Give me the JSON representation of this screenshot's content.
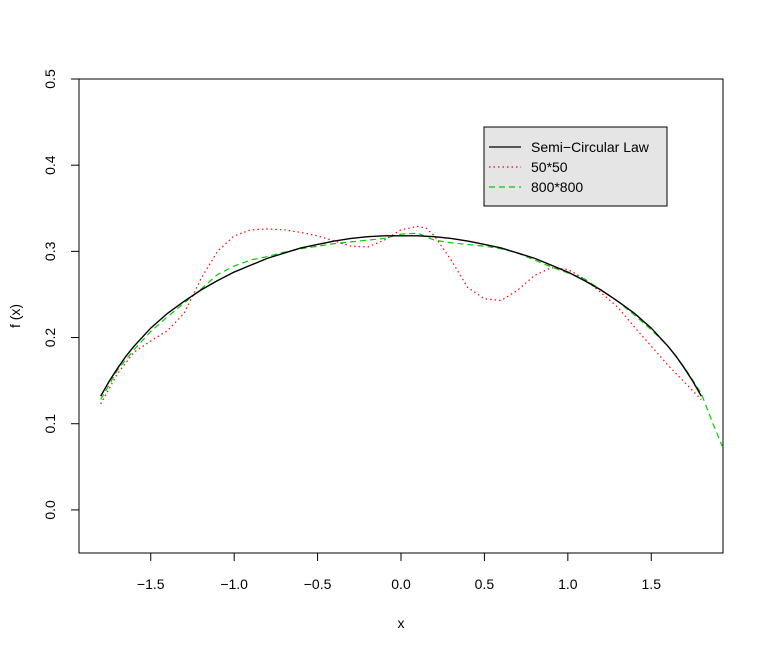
{
  "chart_data": {
    "type": "line",
    "title": "",
    "xlabel": "x",
    "ylabel": "f (x)",
    "xlim": [
      -1.93,
      1.93
    ],
    "ylim": [
      -0.05,
      0.5
    ],
    "x_ticks": [
      -1.5,
      -1.0,
      -0.5,
      0.0,
      0.5,
      1.0,
      1.5
    ],
    "x_tick_labels": [
      "−1.5",
      "−1.0",
      "−0.5",
      "0.0",
      "0.5",
      "1.0",
      "1.5"
    ],
    "y_ticks": [
      0.0,
      0.1,
      0.2,
      0.3,
      0.4,
      0.5
    ],
    "y_tick_labels": [
      "0.0",
      "0.1",
      "0.2",
      "0.3",
      "0.4",
      "0.5"
    ],
    "grid": false,
    "legend_position": "top-right",
    "series": [
      {
        "name": "Semi−Circular Law",
        "color": "#000000",
        "line_style": "solid",
        "x": [
          -1.8,
          -1.75,
          -1.7,
          -1.65,
          -1.6,
          -1.5,
          -1.4,
          -1.3,
          -1.2,
          -1.1,
          -1.0,
          -0.9,
          -0.8,
          -0.7,
          -0.6,
          -0.5,
          -0.4,
          -0.3,
          -0.2,
          -0.1,
          0.0,
          0.1,
          0.2,
          0.3,
          0.4,
          0.5,
          0.6,
          0.7,
          0.8,
          0.9,
          1.0,
          1.1,
          1.2,
          1.3,
          1.4,
          1.5,
          1.6,
          1.65,
          1.7,
          1.75,
          1.8
        ],
        "y": [
          0.132,
          0.149,
          0.164,
          0.178,
          0.19,
          0.211,
          0.228,
          0.242,
          0.255,
          0.266,
          0.276,
          0.284,
          0.292,
          0.298,
          0.304,
          0.308,
          0.312,
          0.315,
          0.317,
          0.318,
          0.318,
          0.318,
          0.317,
          0.315,
          0.312,
          0.308,
          0.304,
          0.298,
          0.292,
          0.284,
          0.276,
          0.266,
          0.255,
          0.242,
          0.228,
          0.211,
          0.19,
          0.178,
          0.164,
          0.149,
          0.132
        ]
      },
      {
        "name": "50*50",
        "color": "#ff0000",
        "line_style": "dotted",
        "x": [
          -1.8,
          -1.7,
          -1.6,
          -1.5,
          -1.4,
          -1.3,
          -1.2,
          -1.1,
          -1.0,
          -0.9,
          -0.8,
          -0.7,
          -0.6,
          -0.5,
          -0.4,
          -0.3,
          -0.2,
          -0.1,
          0.0,
          0.1,
          0.15,
          0.2,
          0.3,
          0.4,
          0.5,
          0.6,
          0.7,
          0.8,
          0.9,
          1.0,
          1.1,
          1.2,
          1.3,
          1.4,
          1.5,
          1.6,
          1.7,
          1.8
        ],
        "y": [
          0.123,
          0.158,
          0.183,
          0.196,
          0.208,
          0.228,
          0.268,
          0.3,
          0.318,
          0.325,
          0.326,
          0.325,
          0.322,
          0.318,
          0.312,
          0.306,
          0.305,
          0.313,
          0.325,
          0.329,
          0.327,
          0.318,
          0.29,
          0.258,
          0.245,
          0.243,
          0.255,
          0.272,
          0.281,
          0.279,
          0.268,
          0.252,
          0.235,
          0.212,
          0.19,
          0.168,
          0.148,
          0.128
        ]
      },
      {
        "name": "800*800",
        "color": "#00cc00",
        "line_style": "dashed",
        "x": [
          -1.8,
          -1.7,
          -1.6,
          -1.5,
          -1.4,
          -1.3,
          -1.2,
          -1.1,
          -1.0,
          -0.9,
          -0.8,
          -0.7,
          -0.6,
          -0.5,
          -0.4,
          -0.3,
          -0.2,
          -0.1,
          0.0,
          0.1,
          0.2,
          0.3,
          0.4,
          0.5,
          0.6,
          0.7,
          0.8,
          0.9,
          1.0,
          1.1,
          1.2,
          1.3,
          1.4,
          1.5,
          1.6,
          1.7,
          1.8,
          1.87,
          1.93
        ],
        "y": [
          0.128,
          0.162,
          0.186,
          0.207,
          0.224,
          0.24,
          0.256,
          0.273,
          0.283,
          0.29,
          0.294,
          0.299,
          0.303,
          0.306,
          0.309,
          0.311,
          0.313,
          0.315,
          0.32,
          0.321,
          0.313,
          0.31,
          0.308,
          0.306,
          0.303,
          0.298,
          0.29,
          0.282,
          0.275,
          0.268,
          0.255,
          0.242,
          0.226,
          0.209,
          0.19,
          0.165,
          0.135,
          0.1,
          0.072
        ]
      }
    ]
  }
}
